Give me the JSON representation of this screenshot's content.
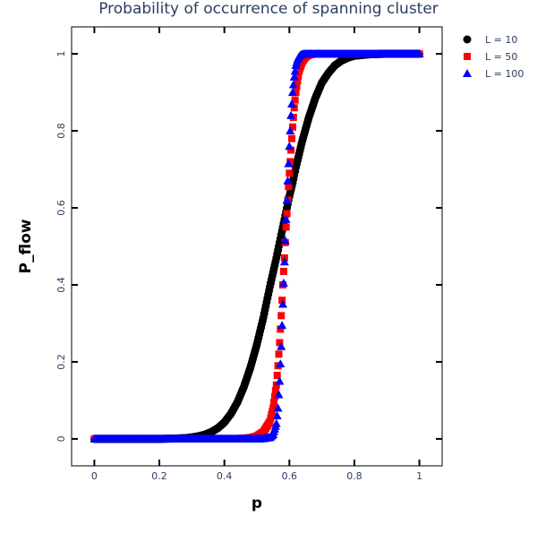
{
  "chart_data": {
    "type": "scatter",
    "title": "Probability of occurrence of spanning cluster",
    "xlabel": "p",
    "ylabel": "P_flow",
    "xlim": [
      -0.07,
      1.07
    ],
    "ylim": [
      -0.07,
      1.07
    ],
    "x_ticks": [
      "0",
      "0.2",
      "0.4",
      "0.6",
      "0.8",
      "1"
    ],
    "x_tick_values": [
      0,
      0.2,
      0.4,
      0.6,
      0.8,
      1
    ],
    "y_ticks": [
      "0",
      "0.2",
      "0.4",
      "0.6",
      "0.8",
      "1"
    ],
    "y_tick_values": [
      0,
      0.2,
      0.4,
      0.6,
      0.8,
      1
    ],
    "legend_position": "top-right",
    "grid": false,
    "series": [
      {
        "name": "L = 10",
        "marker": "circle",
        "color": "#000000",
        "x": [
          0.0,
          0.05,
          0.1,
          0.15,
          0.2,
          0.25,
          0.28,
          0.3,
          0.32,
          0.34,
          0.36,
          0.38,
          0.4,
          0.42,
          0.44,
          0.46,
          0.48,
          0.5,
          0.52,
          0.54,
          0.56,
          0.57,
          0.58,
          0.59,
          0.6,
          0.61,
          0.62,
          0.63,
          0.64,
          0.65,
          0.66,
          0.67,
          0.68,
          0.69,
          0.7,
          0.72,
          0.74,
          0.76,
          0.78,
          0.8,
          0.85,
          0.9,
          0.95,
          1.0
        ],
        "y": [
          0.0,
          0.0,
          0.0,
          0.0,
          0.0,
          0.001,
          0.002,
          0.004,
          0.007,
          0.011,
          0.018,
          0.028,
          0.043,
          0.065,
          0.095,
          0.135,
          0.185,
          0.245,
          0.315,
          0.395,
          0.47,
          0.51,
          0.55,
          0.59,
          0.63,
          0.665,
          0.705,
          0.74,
          0.775,
          0.805,
          0.835,
          0.86,
          0.885,
          0.905,
          0.925,
          0.95,
          0.97,
          0.982,
          0.99,
          0.995,
          0.999,
          1.0,
          1.0,
          1.0
        ]
      },
      {
        "name": "L = 50",
        "marker": "square",
        "color": "#ff0000",
        "x": [
          0.0,
          0.05,
          0.1,
          0.15,
          0.2,
          0.25,
          0.3,
          0.35,
          0.4,
          0.45,
          0.48,
          0.5,
          0.52,
          0.54,
          0.55,
          0.56,
          0.565,
          0.57,
          0.575,
          0.58,
          0.585,
          0.59,
          0.595,
          0.6,
          0.605,
          0.61,
          0.615,
          0.62,
          0.625,
          0.63,
          0.64,
          0.65,
          0.66,
          0.67,
          0.68,
          0.7,
          0.75,
          0.8,
          0.85,
          0.9,
          0.95,
          1.0
        ],
        "y": [
          0.0,
          0.0,
          0.0,
          0.0,
          0.0,
          0.0,
          0.0,
          0.0,
          0.0,
          0.001,
          0.003,
          0.007,
          0.018,
          0.045,
          0.08,
          0.14,
          0.19,
          0.25,
          0.32,
          0.4,
          0.47,
          0.55,
          0.62,
          0.69,
          0.75,
          0.81,
          0.86,
          0.9,
          0.93,
          0.955,
          0.98,
          0.992,
          0.997,
          0.999,
          1.0,
          1.0,
          1.0,
          1.0,
          1.0,
          1.0,
          1.0,
          1.0
        ]
      },
      {
        "name": "L = 100",
        "marker": "triangle-up",
        "color": "#0000ff",
        "x": [
          0.0,
          0.05,
          0.1,
          0.15,
          0.2,
          0.25,
          0.3,
          0.35,
          0.4,
          0.45,
          0.5,
          0.52,
          0.54,
          0.55,
          0.56,
          0.565,
          0.57,
          0.575,
          0.58,
          0.585,
          0.59,
          0.595,
          0.6,
          0.605,
          0.61,
          0.615,
          0.62,
          0.625,
          0.63,
          0.635,
          0.64,
          0.65,
          0.66,
          0.68,
          0.7,
          0.75,
          0.8,
          0.85,
          0.9,
          0.95,
          1.0
        ],
        "y": [
          0.0,
          0.0,
          0.0,
          0.0,
          0.0,
          0.0,
          0.0,
          0.0,
          0.0,
          0.0,
          0.0,
          0.001,
          0.004,
          0.012,
          0.04,
          0.08,
          0.15,
          0.24,
          0.35,
          0.46,
          0.57,
          0.67,
          0.76,
          0.84,
          0.9,
          0.94,
          0.97,
          0.985,
          0.993,
          0.997,
          0.999,
          1.0,
          1.0,
          1.0,
          1.0,
          1.0,
          1.0,
          1.0,
          1.0,
          1.0,
          1.0
        ]
      }
    ]
  }
}
